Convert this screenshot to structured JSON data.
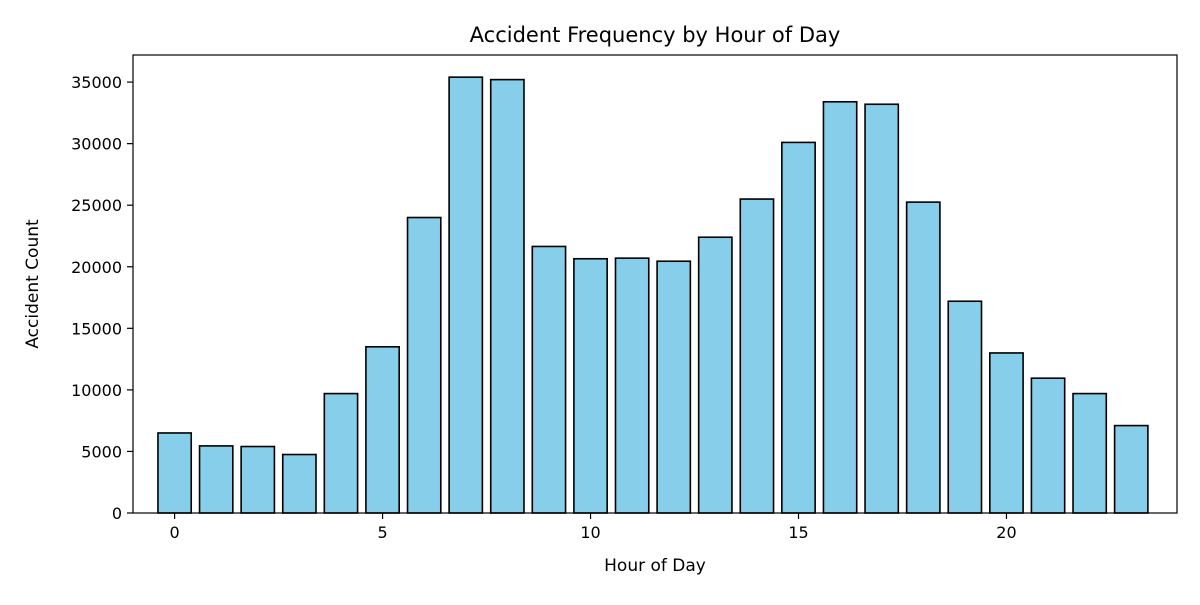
{
  "chart_data": {
    "type": "bar",
    "title": "Accident Frequency by Hour of Day",
    "xlabel": "Hour of Day",
    "ylabel": "Accident Count",
    "x": [
      0,
      1,
      2,
      3,
      4,
      5,
      6,
      7,
      8,
      9,
      10,
      11,
      12,
      13,
      14,
      15,
      16,
      17,
      18,
      19,
      20,
      21,
      22,
      23
    ],
    "values": [
      6500,
      5450,
      5400,
      4750,
      9700,
      13500,
      24000,
      35400,
      35200,
      21650,
      20650,
      20700,
      20450,
      22400,
      25500,
      30100,
      33400,
      33200,
      25250,
      17200,
      13000,
      10950,
      9700,
      7100
    ],
    "xlim": [
      -1.0,
      24.1
    ],
    "ylim": [
      0,
      37200
    ],
    "xticks": [
      "0",
      "5",
      "10",
      "15",
      "20"
    ],
    "yticks": [
      "0",
      "5000",
      "10000",
      "15000",
      "20000",
      "25000",
      "30000",
      "35000"
    ],
    "bar_color": "#87CEEB",
    "edge_color": "#000000",
    "grid": false,
    "legend": "none"
  }
}
